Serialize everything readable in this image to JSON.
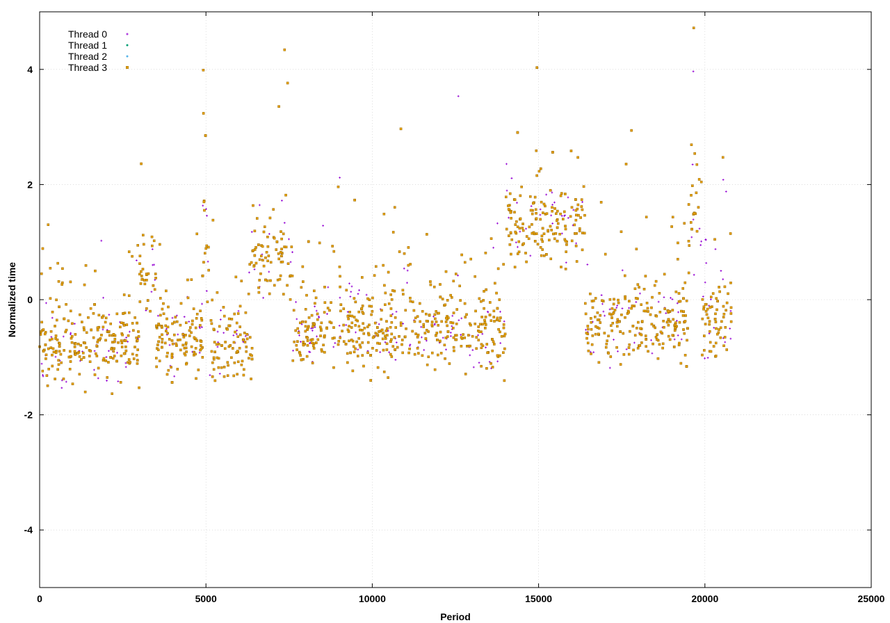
{
  "chart_data": {
    "type": "scatter",
    "title": "",
    "xlabel": "Period",
    "ylabel": "Normalized time",
    "xlim": [
      0,
      25000
    ],
    "ylim": [
      -5,
      5
    ],
    "x_ticks": [
      0,
      5000,
      10000,
      15000,
      20000,
      25000
    ],
    "y_ticks": [
      -4,
      -2,
      0,
      2,
      4
    ],
    "x_tick_labels": [
      "0",
      "5000",
      "10000",
      "15000",
      "20000",
      "25000"
    ],
    "y_tick_labels": [
      "-4",
      "-2",
      "0",
      "2",
      "4"
    ],
    "grid": true,
    "legend_position": "top-left",
    "x_data_range": [
      0,
      20800
    ],
    "series": [
      {
        "name": "Thread 0",
        "color": "#9400d3",
        "marker": "plus"
      },
      {
        "name": "Thread 1",
        "color": "#009e73",
        "marker": "dot"
      },
      {
        "name": "Thread 2",
        "color": "#56b4e9",
        "marker": "dot"
      },
      {
        "name": "Thread 3",
        "color": "#e69f00",
        "marker": "square"
      }
    ],
    "regime_profile": [
      {
        "x_start": 0,
        "x_end": 3000,
        "y_center": -0.8
      },
      {
        "x_start": 3000,
        "x_end": 3500,
        "y_center": 0.3
      },
      {
        "x_start": 3500,
        "x_end": 4900,
        "y_center": -0.7
      },
      {
        "x_start": 4900,
        "x_end": 5100,
        "y_center": 0.6
      },
      {
        "x_start": 5100,
        "x_end": 6400,
        "y_center": -0.8
      },
      {
        "x_start": 6400,
        "x_end": 7600,
        "y_center": 0.7
      },
      {
        "x_start": 7600,
        "x_end": 14000,
        "y_center": -0.5
      },
      {
        "x_start": 14000,
        "x_end": 16400,
        "y_center": 1.3
      },
      {
        "x_start": 16400,
        "x_end": 19500,
        "y_center": -0.4
      },
      {
        "x_start": 19500,
        "x_end": 19900,
        "y_center": 1.2
      },
      {
        "x_start": 19900,
        "x_end": 20800,
        "y_center": -0.4
      }
    ],
    "spike_locations": [
      5000,
      7300,
      9100,
      11000,
      12600,
      15000,
      17800,
      19700,
      20600
    ]
  }
}
